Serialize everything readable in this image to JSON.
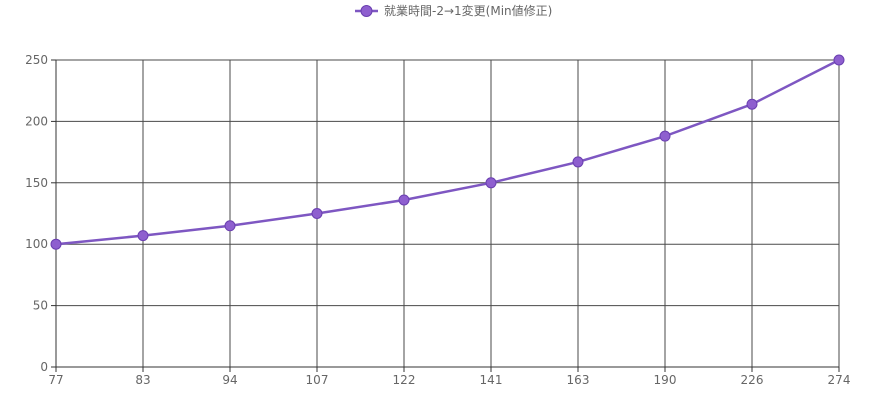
{
  "chart_data": {
    "type": "line",
    "categories": [
      "77",
      "83",
      "94",
      "107",
      "122",
      "141",
      "163",
      "190",
      "226",
      "274"
    ],
    "series": [
      {
        "name": "就業時間-2→1変更(Min値修正)",
        "values": [
          100,
          107,
          115,
          125,
          136,
          150,
          167,
          188,
          214,
          250
        ]
      }
    ],
    "ylim": [
      0,
      250
    ],
    "yticks": [
      0,
      50,
      100,
      150,
      200,
      250
    ],
    "grid": true,
    "legend_position": "top-center",
    "colors": {
      "line": "#7e57c2",
      "marker_fill": "#8e5fcf",
      "marker_stroke": "#6a3fb0",
      "grid": "#4a4a4a"
    }
  }
}
